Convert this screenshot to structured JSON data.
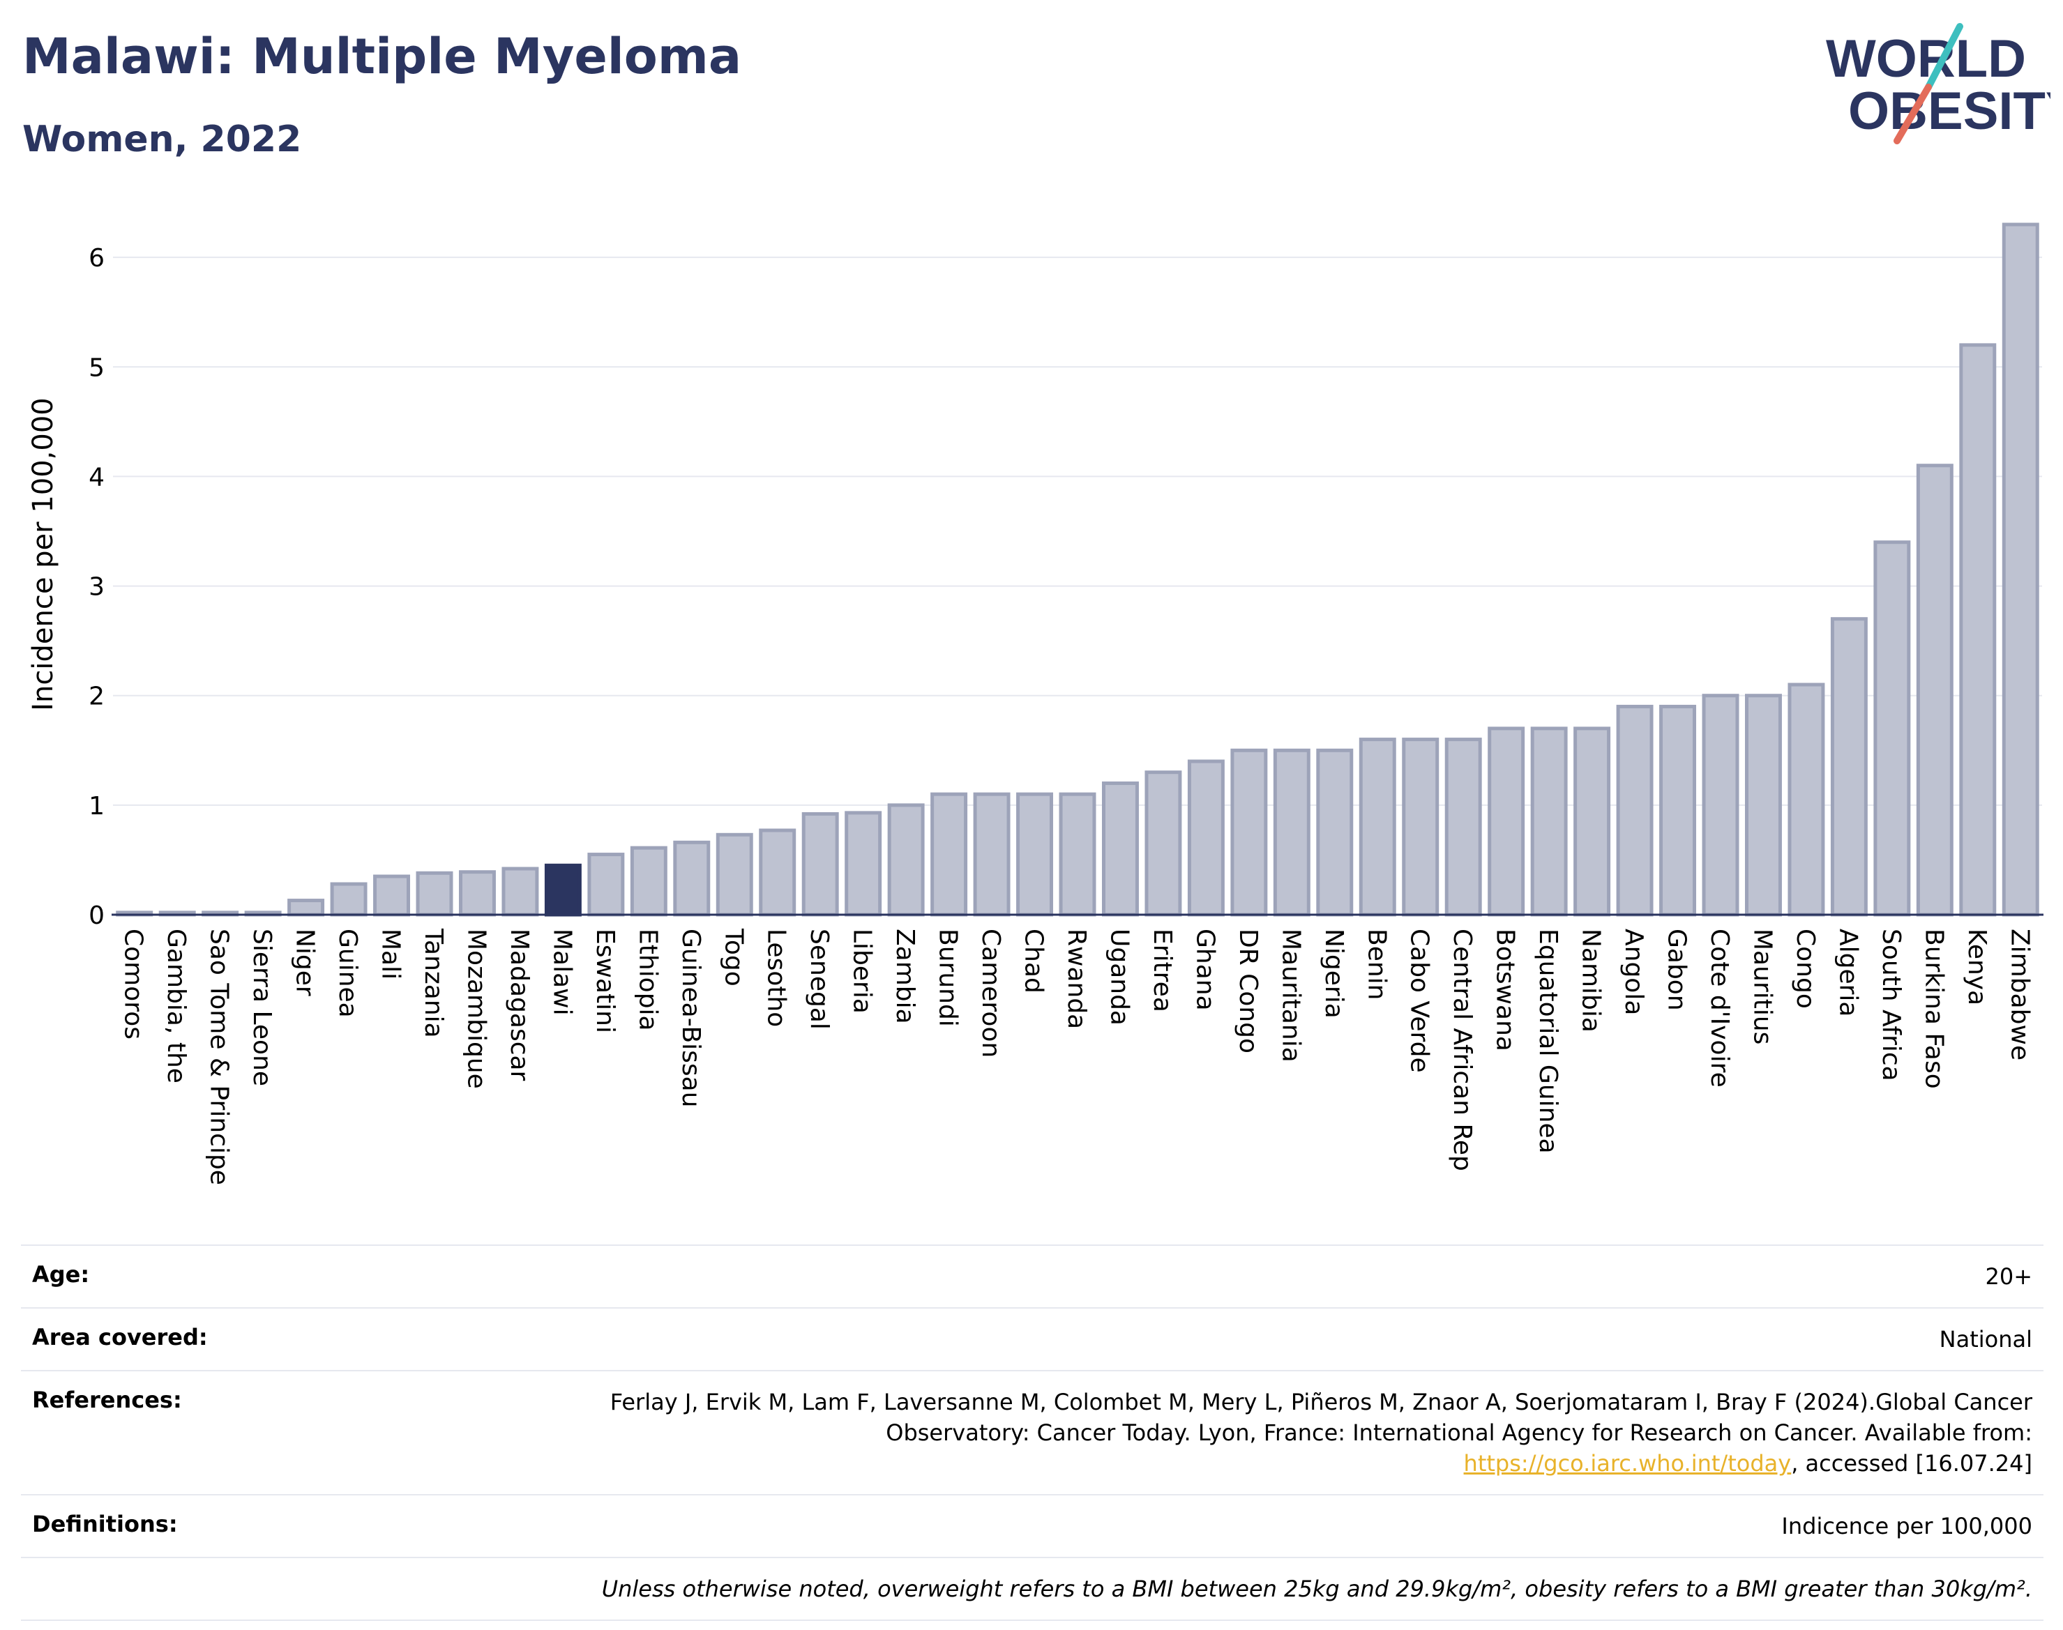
{
  "title": "Malawi: Multiple Myeloma",
  "subtitle": "Women, 2022",
  "logo": {
    "line1": "WORLD",
    "line2": "OBESITY"
  },
  "colors": {
    "bar": "#bec2d1",
    "bar_stroke": "#9da3b9",
    "highlight": "#2b3560",
    "text": "#2b3560",
    "link": "#e8b22a",
    "grid": "#e6e8ef"
  },
  "chart_data": {
    "type": "bar",
    "ylabel": "Incidence per 100,000",
    "xlabel": "",
    "ylim": [
      0,
      6.3
    ],
    "yticks": [
      0,
      1,
      2,
      3,
      4,
      5,
      6
    ],
    "grid": true,
    "highlight": "Malawi",
    "categories": [
      "Comoros",
      "Gambia, the",
      "Sao Tome & Principe",
      "Sierra Leone",
      "Niger",
      "Guinea",
      "Mali",
      "Tanzania",
      "Mozambique",
      "Madagascar",
      "Malawi",
      "Eswatini",
      "Ethiopia",
      "Guinea-Bissau",
      "Togo",
      "Lesotho",
      "Senegal",
      "Liberia",
      "Zambia",
      "Burundi",
      "Cameroon",
      "Chad",
      "Rwanda",
      "Uganda",
      "Eritrea",
      "Ghana",
      "DR Congo",
      "Mauritania",
      "Nigeria",
      "Benin",
      "Cabo Verde",
      "Central African Rep",
      "Botswana",
      "Equatorial Guinea",
      "Namibia",
      "Angola",
      "Gabon",
      "Cote d'Ivoire",
      "Mauritius",
      "Congo",
      "Algeria",
      "South Africa",
      "Burkina Faso",
      "Kenya",
      "Zimbabwe"
    ],
    "values": [
      0.02,
      0.02,
      0.02,
      0.02,
      0.13,
      0.28,
      0.35,
      0.38,
      0.39,
      0.42,
      0.45,
      0.55,
      0.61,
      0.66,
      0.73,
      0.77,
      0.92,
      0.93,
      1.0,
      1.1,
      1.1,
      1.1,
      1.1,
      1.2,
      1.3,
      1.4,
      1.5,
      1.5,
      1.5,
      1.6,
      1.6,
      1.6,
      1.7,
      1.7,
      1.7,
      1.9,
      1.9,
      2.0,
      2.0,
      2.1,
      2.7,
      3.4,
      4.1,
      5.2,
      6.3
    ]
  },
  "meta": [
    {
      "label": "Age:",
      "value": "20+"
    },
    {
      "label": "Area covered:",
      "value": "National"
    },
    {
      "label": "References:",
      "value": "Ferlay J, Ervik M, Lam F, Laversanne M, Colombet M, Mery L, Piñeros M, Znaor A, Soerjomataram I, Bray F (2024).Global Cancer Observatory: Cancer Today. Lyon, France: International Agency for Research on Cancer. Available from:",
      "link": "https://gco.iarc.who.int/today",
      "suffix": ", accessed [16.07.24]"
    },
    {
      "label": "Definitions:",
      "value": "Indicence per 100,000"
    }
  ],
  "note": "Unless otherwise noted, overweight refers to a BMI between 25kg and 29.9kg/m², obesity refers to a BMI greater than 30kg/m²."
}
